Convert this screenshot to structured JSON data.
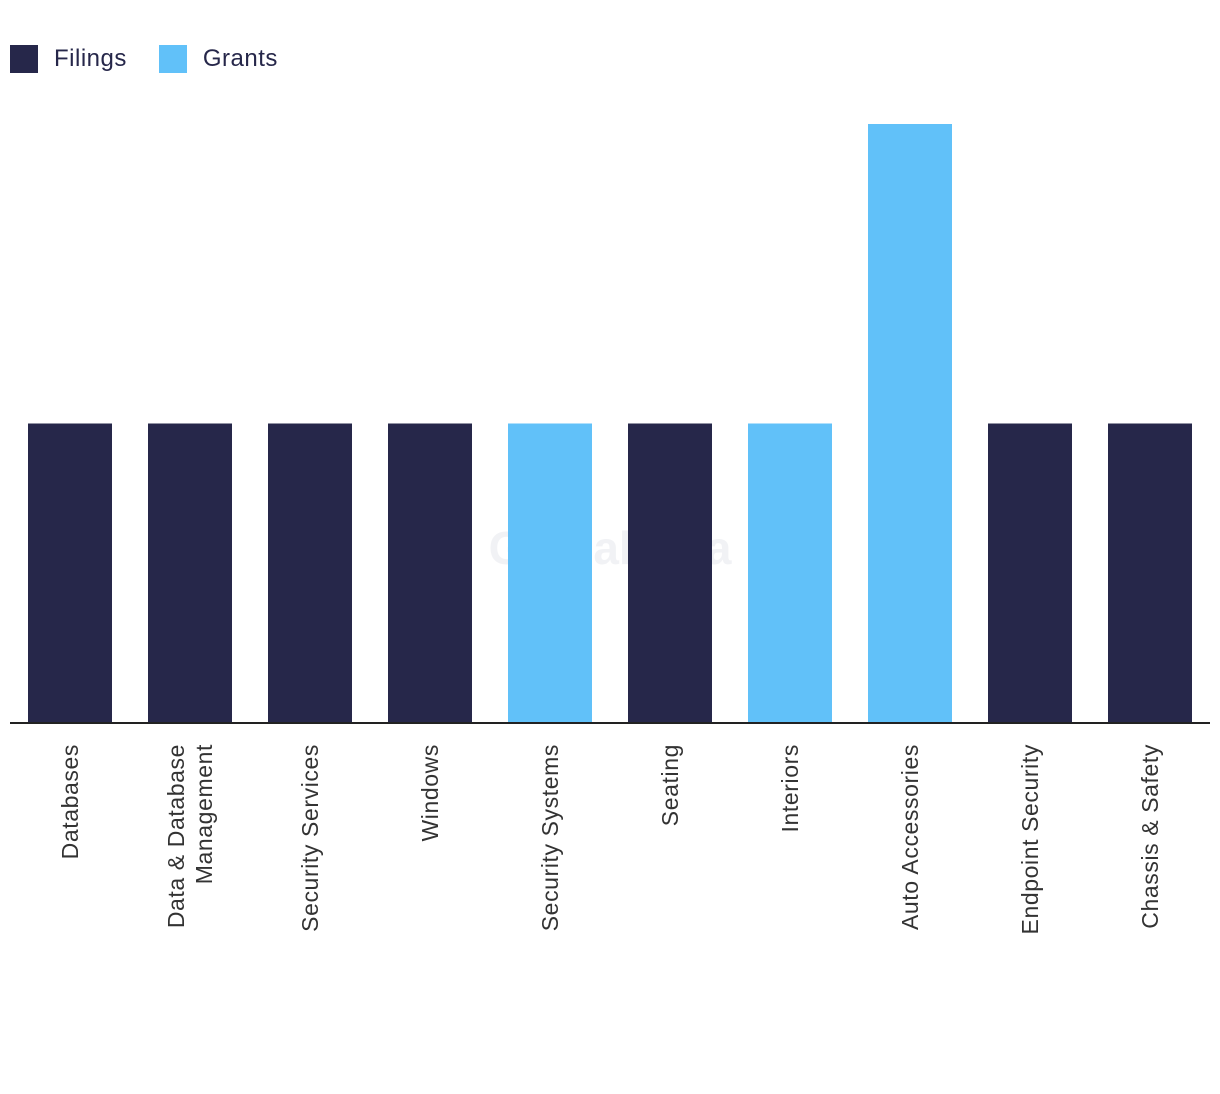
{
  "chart_data": {
    "type": "bar",
    "categories": [
      "Databases",
      "Data & Database Management",
      "Security Services",
      "Windows",
      "Security Systems",
      "Seating",
      "Interiors",
      "Auto Accessories",
      "Endpoint Security",
      "Chassis & Safety"
    ],
    "category_lines": [
      [
        "Databases"
      ],
      [
        "Data & Database",
        "Management"
      ],
      [
        "Security Services"
      ],
      [
        "Windows"
      ],
      [
        "Security Systems"
      ],
      [
        "Seating"
      ],
      [
        "Interiors"
      ],
      [
        "Auto Accessories"
      ],
      [
        "Endpoint Security"
      ],
      [
        "Chassis & Safety"
      ]
    ],
    "values": [
      1,
      1,
      1,
      1,
      1,
      1,
      1,
      2,
      1,
      1
    ],
    "bar_series": [
      "Filings",
      "Filings",
      "Filings",
      "Filings",
      "Grants",
      "Filings",
      "Grants",
      "Grants",
      "Filings",
      "Filings"
    ],
    "series": [
      {
        "name": "Filings",
        "color": "#26274a"
      },
      {
        "name": "Grants",
        "color": "#61c1f9"
      }
    ],
    "ylim": [
      0,
      2
    ],
    "title": "",
    "xlabel": "",
    "ylabel": "",
    "legend_position": "top-left",
    "watermark": "GlobalData"
  }
}
